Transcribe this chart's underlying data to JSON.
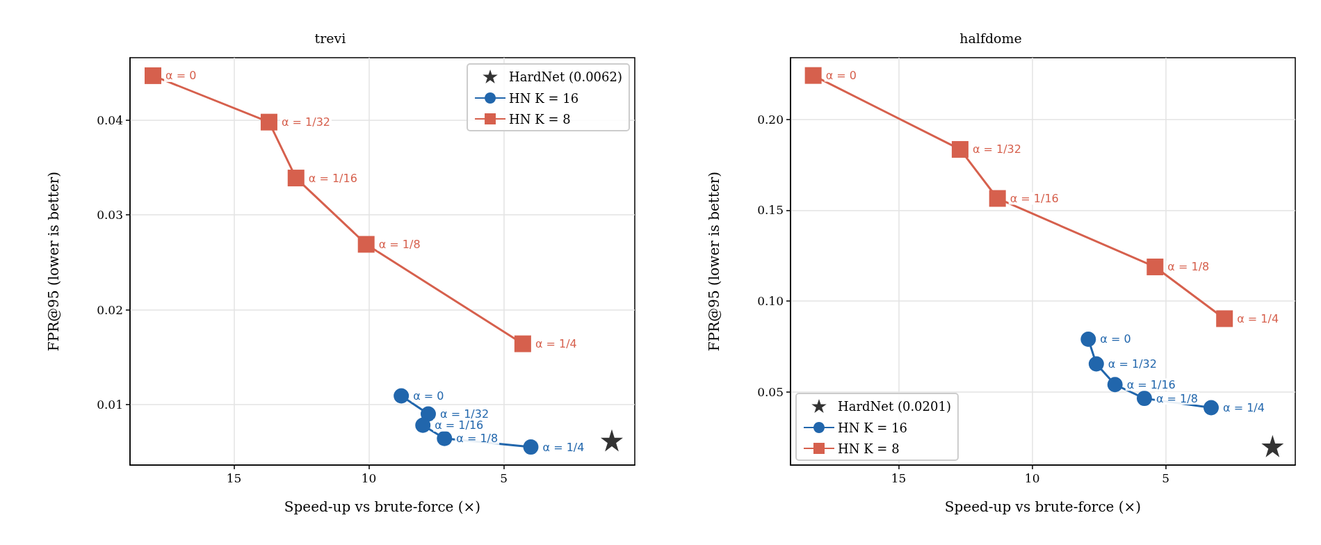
{
  "chart_data": [
    {
      "type": "line",
      "title": "trevi",
      "xlabel": "Speed-up vs brute-force (×)",
      "ylabel": "FPR@95 (lower is better)",
      "xlim": [
        18.85,
        0.15
      ],
      "xticks": [
        15,
        10,
        5
      ],
      "ylim": [
        0.0036,
        0.0466
      ],
      "yticks": [
        0.01,
        0.02,
        0.03,
        0.04
      ],
      "grid": true,
      "legend": "top right",
      "series": [
        {
          "name": "HardNet (0.0062)",
          "type": "scatter",
          "marker": "star",
          "color": "#000000",
          "x": [
            1.0
          ],
          "values": [
            0.0062
          ]
        },
        {
          "name": "HN K = 16",
          "type": "line",
          "marker": "circle",
          "color": "#2166ac",
          "x": [
            8.8,
            7.8,
            8.0,
            7.2,
            4.0
          ],
          "values": [
            0.0109,
            0.009,
            0.0078,
            0.0064,
            0.0055
          ],
          "value_labels": [
            "α = 0",
            "α = 1/32",
            "α = 1/16",
            "α = 1/8",
            "α = 1/4"
          ]
        },
        {
          "name": "HN K = 8",
          "type": "line",
          "marker": "square",
          "color": "#d6604d",
          "x": [
            18.0,
            13.7,
            12.7,
            10.1,
            4.3
          ],
          "values": [
            0.0447,
            0.0398,
            0.0339,
            0.0269,
            0.0164
          ],
          "value_labels": [
            "α = 0",
            "α = 1/32",
            "α = 1/16",
            "α = 1/8",
            "α = 1/4"
          ]
        }
      ]
    },
    {
      "type": "line",
      "title": "halfdome",
      "xlabel": "Speed-up vs brute-force (×)",
      "ylabel": "FPR@95 (lower is better)",
      "xlim": [
        19.05,
        0.15
      ],
      "xticks": [
        15,
        10,
        5
      ],
      "ylim": [
        0.0097,
        0.234
      ],
      "yticks": [
        {
          "value": 0.05,
          "label": "0.05"
        },
        {
          "value": 0.1,
          "label": "0.10"
        },
        {
          "value": 0.15,
          "label": "0.15"
        },
        {
          "value": 0.2,
          "label": "0.20"
        }
      ],
      "grid": true,
      "legend": "bottom left",
      "series": [
        {
          "name": "HardNet (0.0201)",
          "type": "scatter",
          "marker": "star",
          "color": "#000000",
          "x": [
            1.0
          ],
          "values": [
            0.0201
          ]
        },
        {
          "name": "HN K = 16",
          "type": "line",
          "marker": "circle",
          "color": "#2166ac",
          "x": [
            7.9,
            7.6,
            6.9,
            5.8,
            3.3
          ],
          "values": [
            0.079,
            0.0654,
            0.054,
            0.0464,
            0.0413
          ],
          "value_labels": [
            "α = 0",
            "α = 1/32",
            "α = 1/16",
            "α = 1/8",
            "α = 1/4"
          ]
        },
        {
          "name": "HN K = 8",
          "type": "line",
          "marker": "square",
          "color": "#d6604d",
          "x": [
            18.2,
            12.7,
            11.3,
            5.4,
            2.8
          ],
          "values": [
            0.2242,
            0.1835,
            0.1565,
            0.1188,
            0.0903
          ],
          "value_labels": [
            "α = 0",
            "α = 1/32",
            "α = 1/16",
            "α = 1/8",
            "α = 1/4"
          ]
        }
      ]
    }
  ]
}
